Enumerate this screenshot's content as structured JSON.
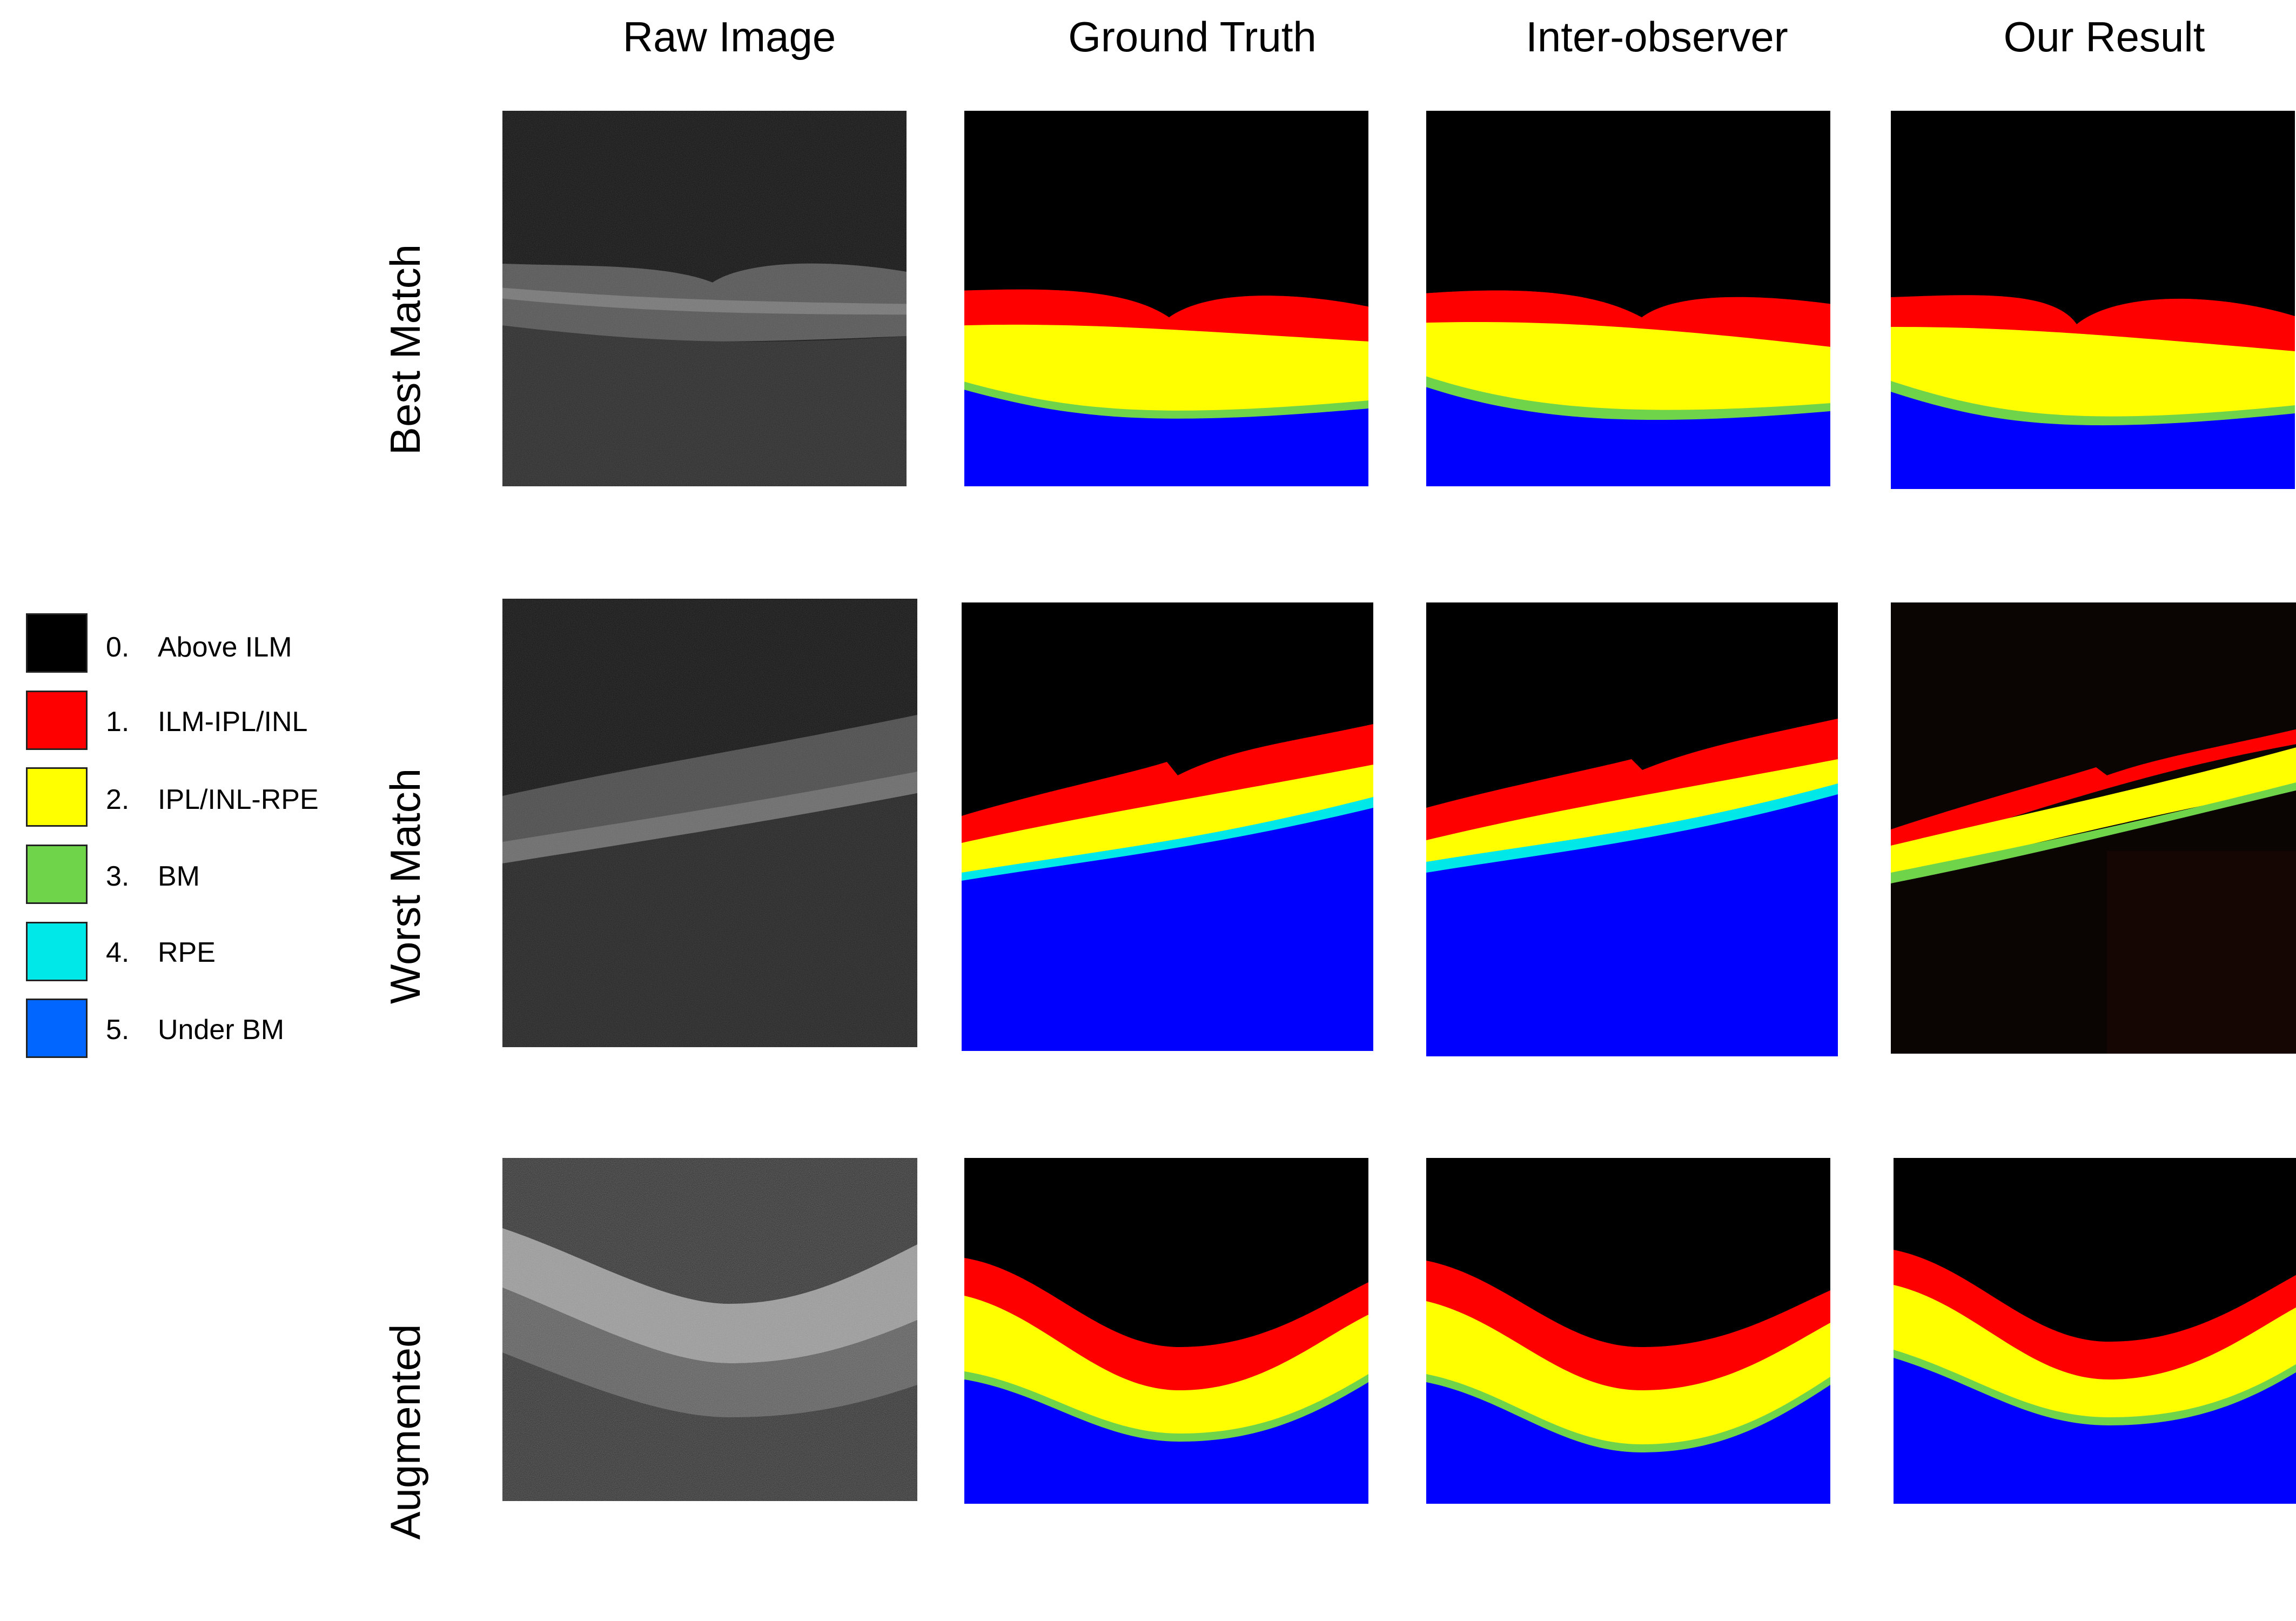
{
  "columns": {
    "raw": "Raw Image",
    "ground_truth": "Ground Truth",
    "inter_observer": "Inter-observer",
    "our_result": "Our Result"
  },
  "rows": {
    "best": "Best Match",
    "worst": "Worst Match",
    "augmented": "Augmented"
  },
  "legend": [
    {
      "num": "0.",
      "label": "Above ILM",
      "color": "#000000"
    },
    {
      "num": "1.",
      "label": "ILM-IPL/INL",
      "color": "#ff0000"
    },
    {
      "num": "2.",
      "label": "IPL/INL-RPE",
      "color": "#ffff00"
    },
    {
      "num": "3.",
      "label": "BM",
      "color": "#70d44a"
    },
    {
      "num": "4.",
      "label": "RPE",
      "color": "#00e8e8"
    },
    {
      "num": "5.",
      "label": "Under BM",
      "color": "#0066ff"
    }
  ]
}
